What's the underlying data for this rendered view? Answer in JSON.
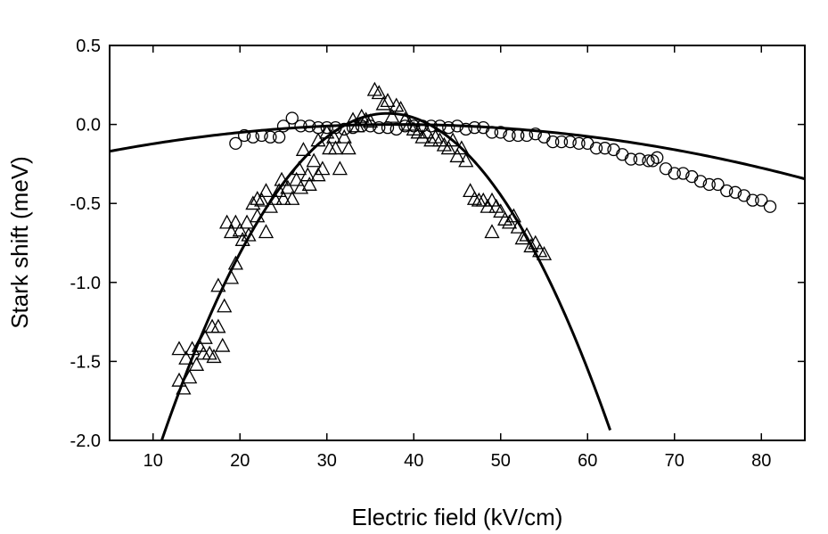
{
  "chart_data": {
    "type": "scatter",
    "title": "",
    "xlabel": "Electric field (kV/cm)",
    "ylabel": "Stark shift (meV)",
    "xlim": [
      5,
      85
    ],
    "ylim": [
      -2.0,
      0.5
    ],
    "xticks": [
      10,
      20,
      30,
      40,
      50,
      60,
      70,
      80
    ],
    "yticks": [
      0.5,
      0.0,
      -0.5,
      -1.0,
      -1.5,
      -2.0
    ],
    "ytick_labels": [
      "0.5",
      "0.0",
      "-0.5",
      "-1.0",
      "-1.5",
      "-2.0"
    ],
    "grid": false,
    "legend": "none",
    "colors": {
      "marks": "#000000",
      "background": "#ffffff"
    },
    "series": [
      {
        "marker": "circle",
        "points": [
          [
            19.5,
            -0.12
          ],
          [
            20.5,
            -0.07
          ],
          [
            21.5,
            -0.08
          ],
          [
            22.5,
            -0.07
          ],
          [
            23.5,
            -0.08
          ],
          [
            24.5,
            -0.08
          ],
          [
            25,
            -0.01
          ],
          [
            26,
            0.04
          ],
          [
            27,
            -0.01
          ],
          [
            28,
            -0.01
          ],
          [
            29,
            -0.02
          ],
          [
            30,
            -0.02
          ],
          [
            31,
            -0.02
          ],
          [
            32,
            -0.03
          ],
          [
            33,
            -0.02
          ],
          [
            34,
            -0.01
          ],
          [
            35,
            -0.01
          ],
          [
            36,
            -0.02
          ],
          [
            37,
            -0.02
          ],
          [
            38,
            -0.03
          ],
          [
            39,
            -0.01
          ],
          [
            40,
            -0.01
          ],
          [
            41,
            -0.01
          ],
          [
            42,
            -0.01
          ],
          [
            43,
            -0.01
          ],
          [
            44,
            -0.02
          ],
          [
            45,
            -0.01
          ],
          [
            46,
            -0.03
          ],
          [
            47,
            -0.02
          ],
          [
            48,
            -0.02
          ],
          [
            49,
            -0.05
          ],
          [
            50,
            -0.05
          ],
          [
            51,
            -0.07
          ],
          [
            52,
            -0.07
          ],
          [
            53,
            -0.07
          ],
          [
            54,
            -0.06
          ],
          [
            55,
            -0.08
          ],
          [
            56,
            -0.11
          ],
          [
            57,
            -0.11
          ],
          [
            58,
            -0.11
          ],
          [
            59,
            -0.12
          ],
          [
            60,
            -0.12
          ],
          [
            61,
            -0.15
          ],
          [
            62,
            -0.15
          ],
          [
            63,
            -0.16
          ],
          [
            64,
            -0.19
          ],
          [
            65,
            -0.22
          ],
          [
            66,
            -0.22
          ],
          [
            67,
            -0.23
          ],
          [
            67.5,
            -0.23
          ],
          [
            68,
            -0.21
          ],
          [
            69,
            -0.28
          ],
          [
            70,
            -0.31
          ],
          [
            71,
            -0.31
          ],
          [
            72,
            -0.33
          ],
          [
            73,
            -0.36
          ],
          [
            74,
            -0.38
          ],
          [
            75,
            -0.38
          ],
          [
            76,
            -0.42
          ],
          [
            77,
            -0.43
          ],
          [
            78,
            -0.45
          ],
          [
            79,
            -0.48
          ],
          [
            80,
            -0.48
          ],
          [
            81,
            -0.52
          ]
        ]
      },
      {
        "marker": "triangle",
        "points": [
          [
            13,
            -1.62
          ],
          [
            13.5,
            -1.67
          ],
          [
            13,
            -1.42
          ],
          [
            13.8,
            -1.48
          ],
          [
            14.2,
            -1.6
          ],
          [
            14.5,
            -1.42
          ],
          [
            15,
            -1.52
          ],
          [
            15.3,
            -1.4
          ],
          [
            15.8,
            -1.45
          ],
          [
            16,
            -1.35
          ],
          [
            16.5,
            -1.45
          ],
          [
            16.8,
            -1.28
          ],
          [
            17,
            -1.47
          ],
          [
            17.5,
            -1.28
          ],
          [
            17.5,
            -1.02
          ],
          [
            18,
            -1.4
          ],
          [
            18.2,
            -1.15
          ],
          [
            18.5,
            -0.62
          ],
          [
            19,
            -0.68
          ],
          [
            19,
            -0.97
          ],
          [
            19.5,
            -0.62
          ],
          [
            19.5,
            -0.88
          ],
          [
            20,
            -0.67
          ],
          [
            20.3,
            -0.73
          ],
          [
            20.8,
            -0.62
          ],
          [
            21,
            -0.7
          ],
          [
            21.5,
            -0.5
          ],
          [
            22,
            -0.58
          ],
          [
            22,
            -0.47
          ],
          [
            22.5,
            -0.48
          ],
          [
            23,
            -0.68
          ],
          [
            23,
            -0.42
          ],
          [
            23.5,
            -0.52
          ],
          [
            24,
            -0.47
          ],
          [
            24.5,
            -0.42
          ],
          [
            24.8,
            -0.35
          ],
          [
            25,
            -0.47
          ],
          [
            25.5,
            -0.4
          ],
          [
            26,
            -0.47
          ],
          [
            26.5,
            -0.35
          ],
          [
            26.8,
            -0.28
          ],
          [
            27,
            -0.4
          ],
          [
            27.3,
            -0.16
          ],
          [
            27.8,
            -0.32
          ],
          [
            28,
            -0.38
          ],
          [
            28.5,
            -0.23
          ],
          [
            29,
            -0.32
          ],
          [
            29,
            -0.1
          ],
          [
            29.5,
            -0.28
          ],
          [
            30,
            -0.05
          ],
          [
            30.3,
            -0.15
          ],
          [
            30.8,
            -0.08
          ],
          [
            31,
            -0.15
          ],
          [
            31.5,
            -0.28
          ],
          [
            32,
            -0.08
          ],
          [
            32.5,
            -0.15
          ],
          [
            33,
            0.03
          ],
          [
            33.5,
            -0.01
          ],
          [
            34,
            0.05
          ],
          [
            34.5,
            0.03
          ],
          [
            35,
            0.02
          ],
          [
            35.5,
            0.22
          ],
          [
            36,
            0.2
          ],
          [
            36.5,
            0.13
          ],
          [
            37,
            0.15
          ],
          [
            37.5,
            0.05
          ],
          [
            38,
            0.12
          ],
          [
            38.5,
            0.1
          ],
          [
            39,
            0.03
          ],
          [
            39.5,
            0.0
          ],
          [
            40,
            -0.03
          ],
          [
            40.5,
            -0.05
          ],
          [
            41,
            -0.08
          ],
          [
            41.5,
            -0.05
          ],
          [
            42,
            -0.1
          ],
          [
            42.5,
            -0.08
          ],
          [
            43,
            -0.1
          ],
          [
            43.5,
            -0.13
          ],
          [
            44,
            -0.15
          ],
          [
            44.5,
            -0.1
          ],
          [
            45,
            -0.2
          ],
          [
            45.5,
            -0.15
          ],
          [
            46,
            -0.23
          ],
          [
            46.5,
            -0.42
          ],
          [
            47,
            -0.47
          ],
          [
            47.5,
            -0.48
          ],
          [
            48,
            -0.48
          ],
          [
            48.5,
            -0.52
          ],
          [
            49,
            -0.48
          ],
          [
            49,
            -0.68
          ],
          [
            49.5,
            -0.52
          ],
          [
            50,
            -0.55
          ],
          [
            50.5,
            -0.6
          ],
          [
            51,
            -0.62
          ],
          [
            51.5,
            -0.58
          ],
          [
            52,
            -0.65
          ],
          [
            52.5,
            -0.72
          ],
          [
            53,
            -0.7
          ],
          [
            53.5,
            -0.77
          ],
          [
            54,
            -0.75
          ],
          [
            54.5,
            -0.8
          ],
          [
            55,
            -0.82
          ]
        ]
      }
    ],
    "fits": [
      {
        "type": "quadratic",
        "vertex_x": 38.0,
        "vertex_y": 0.0,
        "a": -0.000156,
        "x_range": [
          5,
          85
        ]
      },
      {
        "type": "quadratic",
        "vertex_x": 37.0,
        "vertex_y": 0.07,
        "a": -0.00306,
        "x_range": [
          10.8,
          62.6
        ]
      }
    ]
  }
}
